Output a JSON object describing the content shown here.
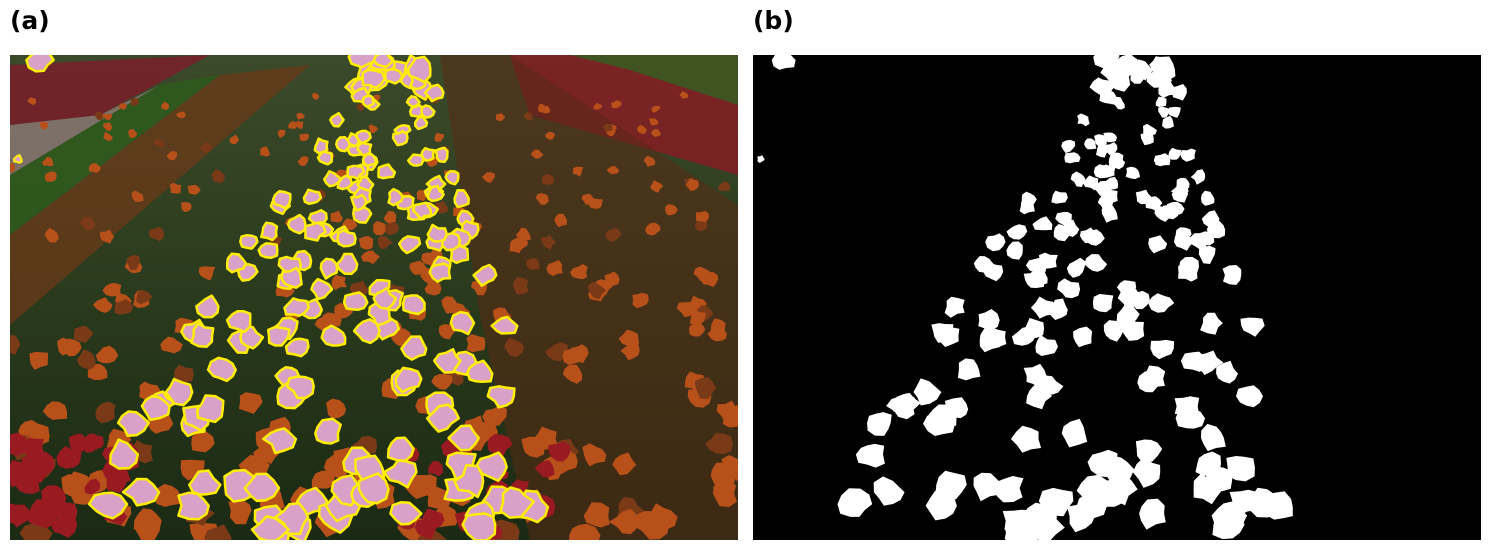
{
  "panels": [
    {
      "label": "(a)",
      "image": "tulip-field-photo-with-segmentation-contours"
    },
    {
      "label": "(b)",
      "image": "binary-segmentation-mask"
    }
  ],
  "colors": {
    "contour": "#ffee00",
    "pink_tulip": "#d9a0c8",
    "orange_tulip": "#b8501a",
    "red_tulip": "#9a1a22",
    "foliage": "#1f3a18",
    "mask_foreground": "#ffffff",
    "mask_background": "#000000"
  }
}
